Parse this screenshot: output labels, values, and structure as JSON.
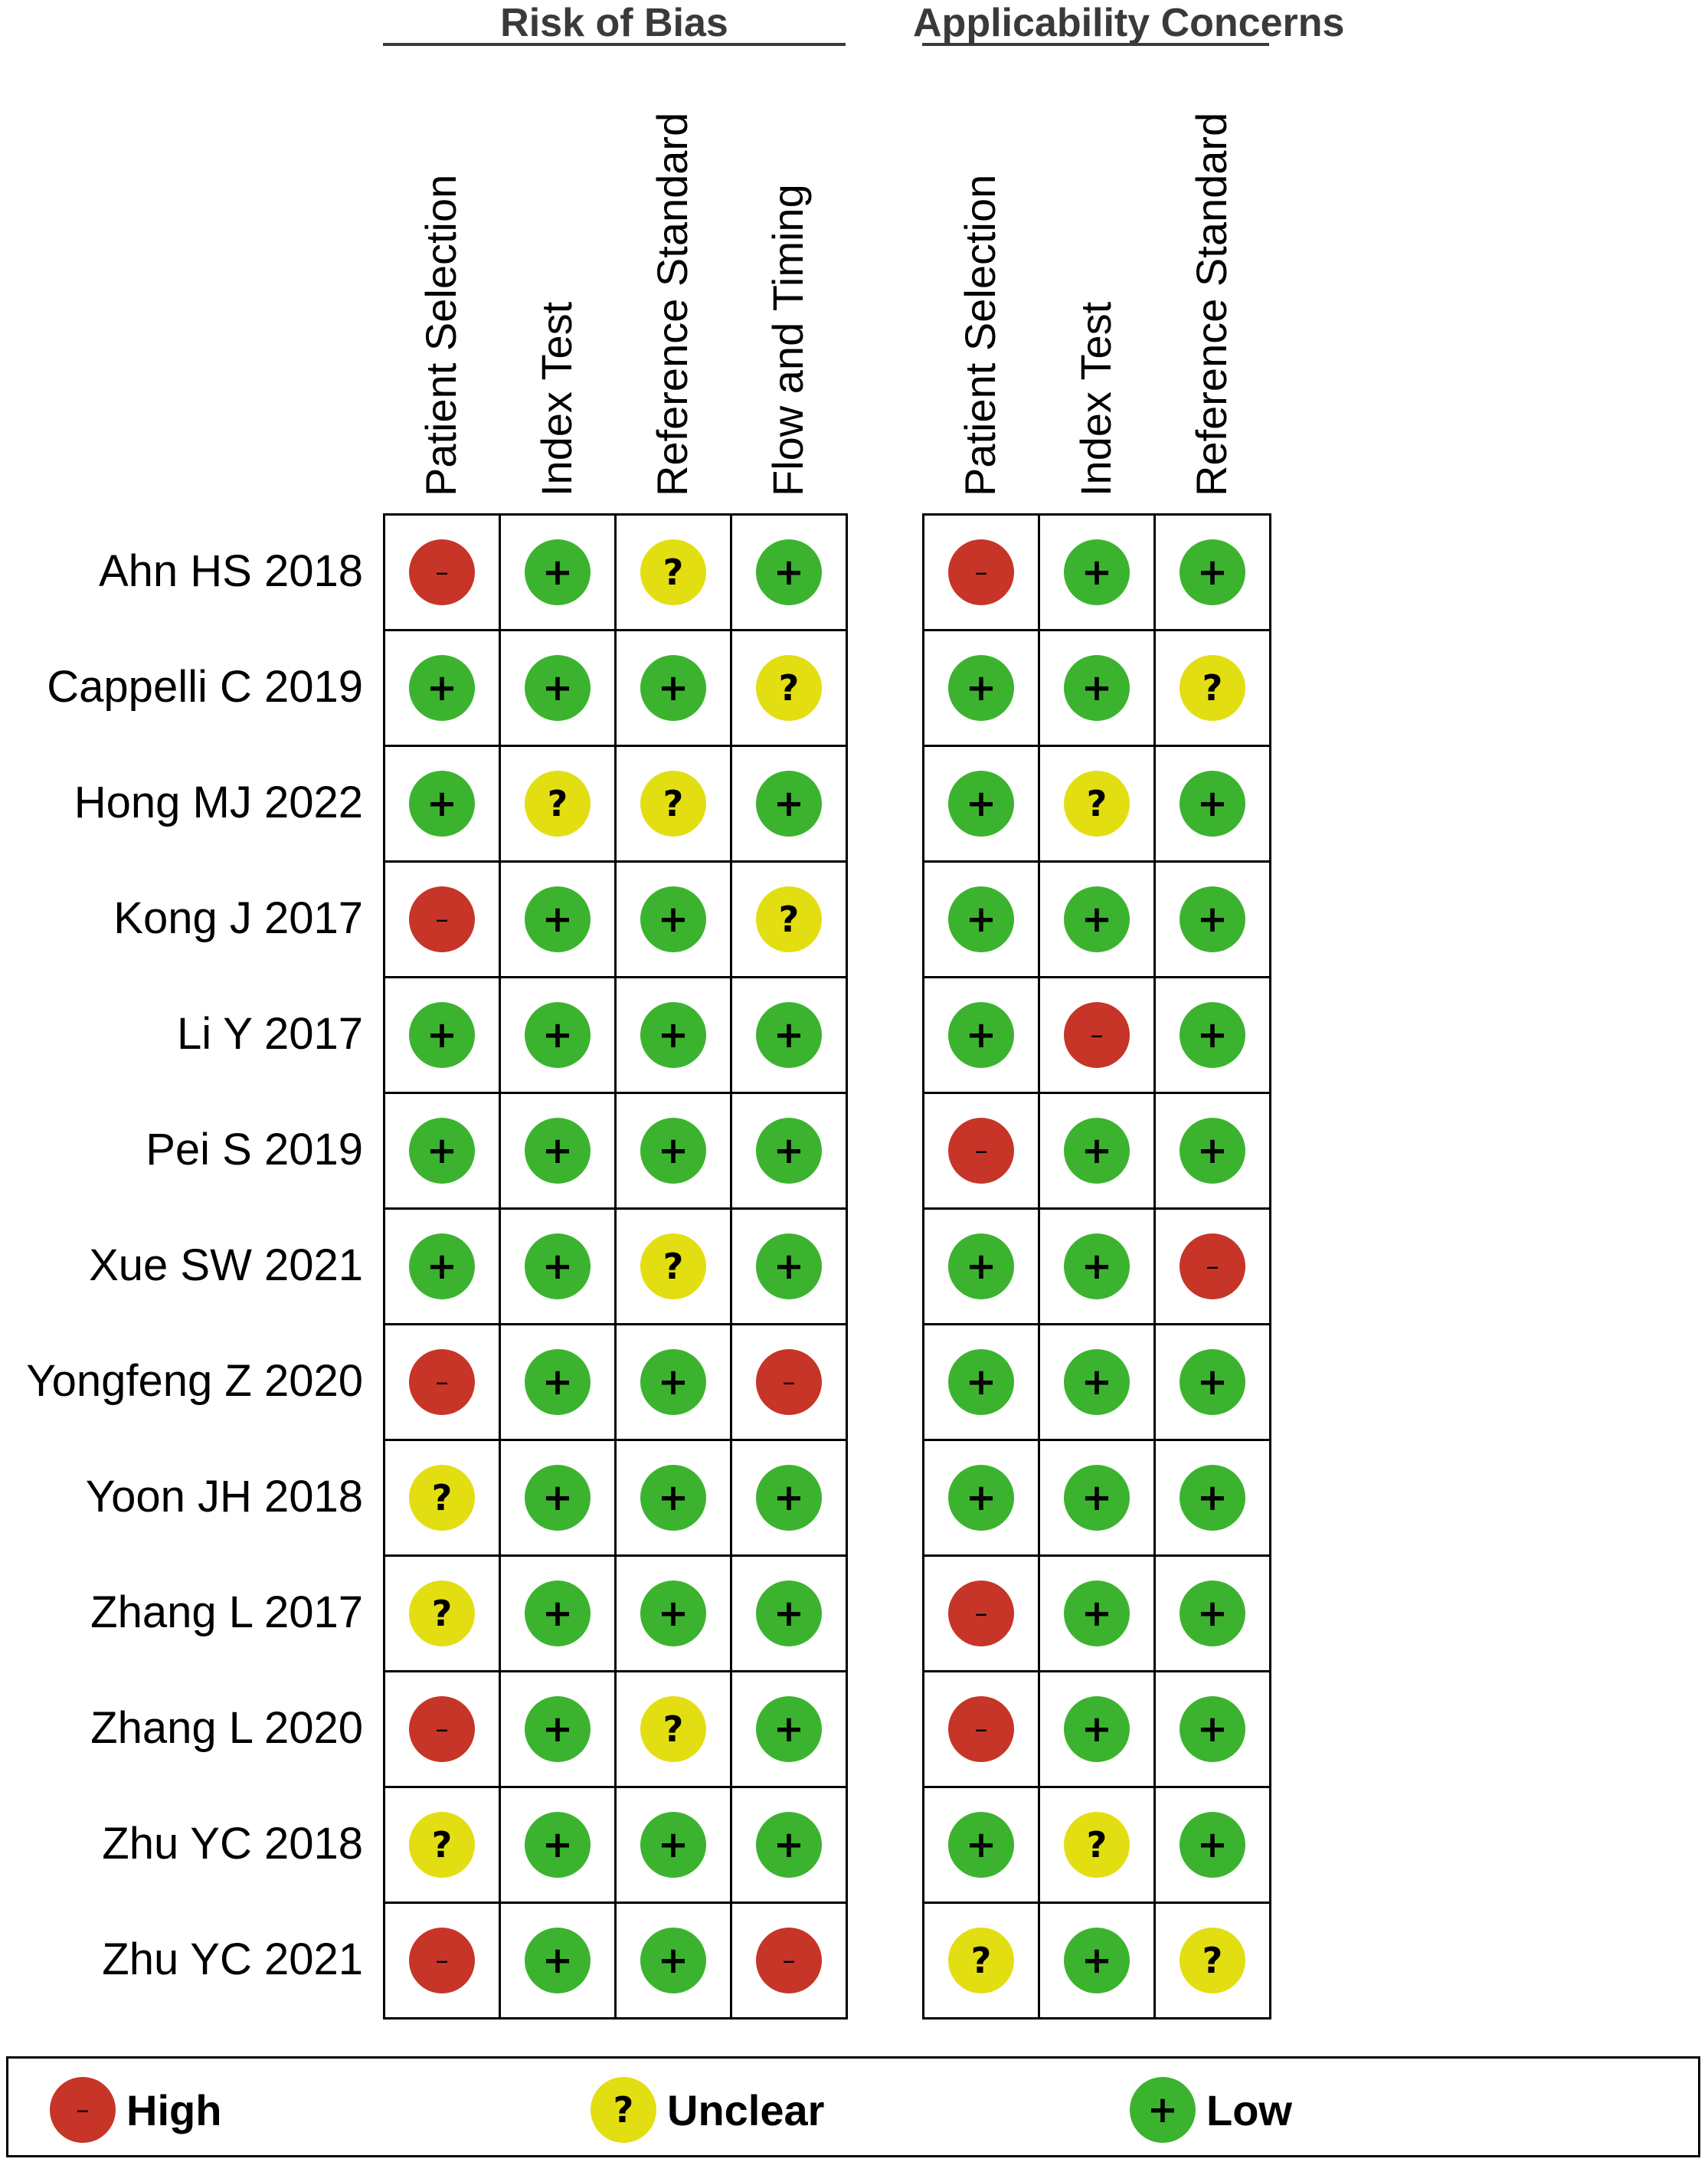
{
  "chart_data": {
    "type": "table",
    "groups": [
      {
        "title": "Risk of Bias",
        "columns": [
          "Patient Selection",
          "Index Test",
          "Reference Standard",
          "Flow and Timing"
        ]
      },
      {
        "title": "Applicability Concerns",
        "columns": [
          "Patient Selection",
          "Index Test",
          "Reference Standard"
        ]
      }
    ],
    "studies": [
      {
        "name": "Ahn HS 2018",
        "risk_of_bias": [
          "high",
          "low",
          "unclear",
          "low"
        ],
        "applicability": [
          "high",
          "low",
          "low"
        ]
      },
      {
        "name": "Cappelli C 2019",
        "risk_of_bias": [
          "low",
          "low",
          "low",
          "unclear"
        ],
        "applicability": [
          "low",
          "low",
          "unclear"
        ]
      },
      {
        "name": "Hong MJ 2022",
        "risk_of_bias": [
          "low",
          "unclear",
          "unclear",
          "low"
        ],
        "applicability": [
          "low",
          "unclear",
          "low"
        ]
      },
      {
        "name": "Kong J 2017",
        "risk_of_bias": [
          "high",
          "low",
          "low",
          "unclear"
        ],
        "applicability": [
          "low",
          "low",
          "low"
        ]
      },
      {
        "name": "Li Y 2017",
        "risk_of_bias": [
          "low",
          "low",
          "low",
          "low"
        ],
        "applicability": [
          "low",
          "high",
          "low"
        ]
      },
      {
        "name": "Pei S 2019",
        "risk_of_bias": [
          "low",
          "low",
          "low",
          "low"
        ],
        "applicability": [
          "high",
          "low",
          "low"
        ]
      },
      {
        "name": "Xue SW 2021",
        "risk_of_bias": [
          "low",
          "low",
          "unclear",
          "low"
        ],
        "applicability": [
          "low",
          "low",
          "high"
        ]
      },
      {
        "name": "Yongfeng Z 2020",
        "risk_of_bias": [
          "high",
          "low",
          "low",
          "high"
        ],
        "applicability": [
          "low",
          "low",
          "low"
        ]
      },
      {
        "name": "Yoon JH 2018",
        "risk_of_bias": [
          "unclear",
          "low",
          "low",
          "low"
        ],
        "applicability": [
          "low",
          "low",
          "low"
        ]
      },
      {
        "name": "Zhang L 2017",
        "risk_of_bias": [
          "unclear",
          "low",
          "low",
          "low"
        ],
        "applicability": [
          "high",
          "low",
          "low"
        ]
      },
      {
        "name": "Zhang L 2020",
        "risk_of_bias": [
          "high",
          "low",
          "unclear",
          "low"
        ],
        "applicability": [
          "high",
          "low",
          "low"
        ]
      },
      {
        "name": "Zhu YC 2018",
        "risk_of_bias": [
          "unclear",
          "low",
          "low",
          "low"
        ],
        "applicability": [
          "low",
          "unclear",
          "low"
        ]
      },
      {
        "name": "Zhu YC 2021",
        "risk_of_bias": [
          "high",
          "low",
          "low",
          "high"
        ],
        "applicability": [
          "unclear",
          "low",
          "unclear"
        ]
      }
    ],
    "legend": [
      {
        "key": "high",
        "label": "High",
        "symbol": "–",
        "color": "#c63527"
      },
      {
        "key": "unclear",
        "label": "Unclear",
        "symbol": "?",
        "color": "#e3de12"
      },
      {
        "key": "low",
        "label": "Low",
        "symbol": "+",
        "color": "#3cb32f"
      }
    ]
  }
}
